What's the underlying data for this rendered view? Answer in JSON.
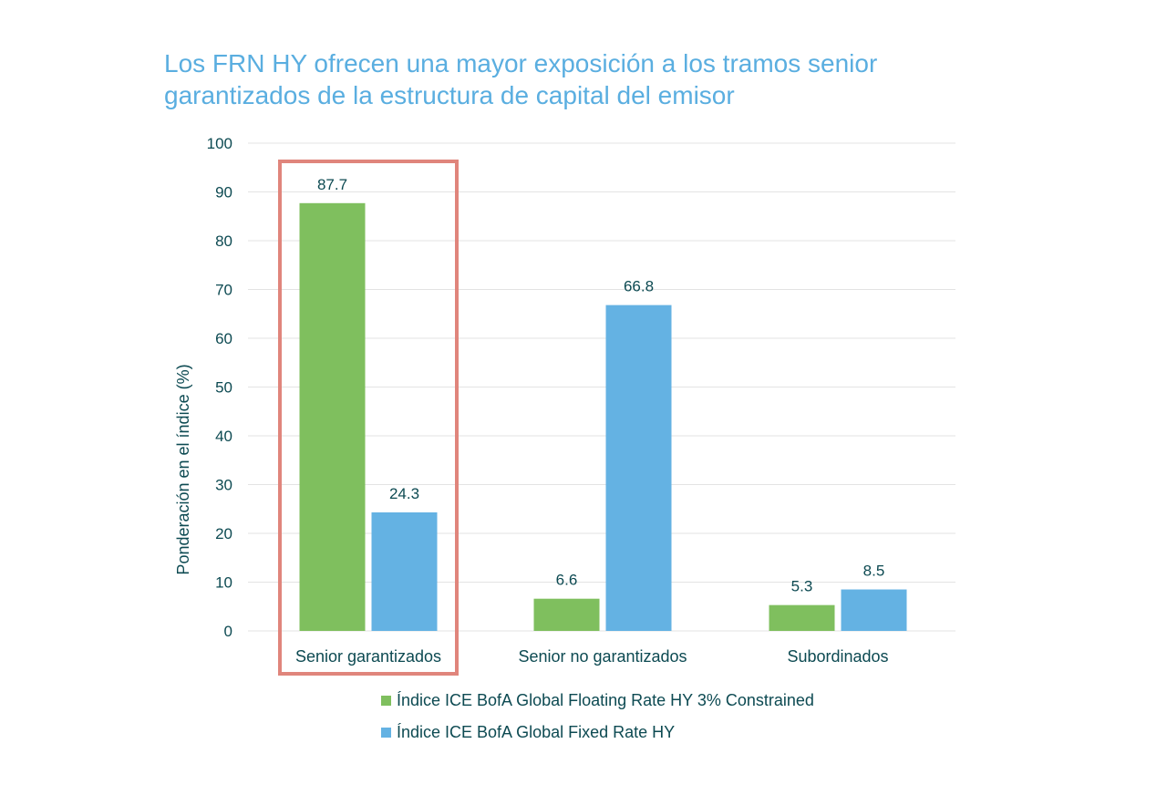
{
  "chart_data": {
    "type": "bar",
    "title": "Los FRN HY ofrecen una mayor exposición a los tramos senior garantizados de la estructura de capital del emisor",
    "ylabel": "Ponderación en el índice (%)",
    "xlabel": "",
    "ylim": [
      0,
      100
    ],
    "yticks": [
      0,
      10,
      20,
      30,
      40,
      50,
      60,
      70,
      80,
      90,
      100
    ],
    "categories": [
      "Senior garantizados",
      "Senior no garantizados",
      "Subordinados"
    ],
    "series": [
      {
        "name": "Índice ICE BofA Global Floating Rate HY 3% Constrained",
        "color": "#7fbf5e",
        "values": [
          87.7,
          6.6,
          5.3
        ],
        "labels": [
          "87.7",
          "6.6",
          "5.3"
        ]
      },
      {
        "name": "Índice ICE BofA Global Fixed Rate HY",
        "color": "#64b2e3",
        "values": [
          24.3,
          66.8,
          8.5
        ],
        "labels": [
          "24.3",
          "66.8",
          "8.5"
        ]
      }
    ],
    "grid": true,
    "gridColor": "#e3e3e3",
    "highlight": {
      "category": "Senior garantizados",
      "color": "#e0857c"
    },
    "legend_position": "bottom"
  }
}
